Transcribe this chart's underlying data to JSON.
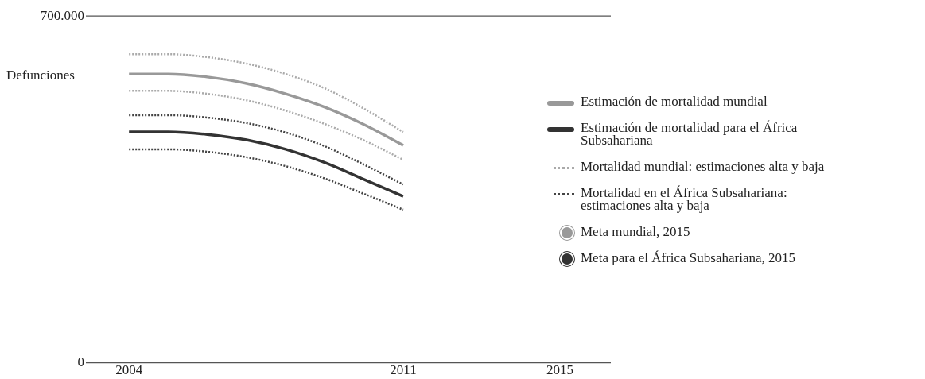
{
  "chart_data": {
    "type": "line",
    "ylabel": "Defunciones",
    "x": [
      2004,
      2005,
      2006,
      2007,
      2008,
      2009,
      2010,
      2011
    ],
    "xlim": [
      2002.9,
      2016.3
    ],
    "xticks": [
      2004,
      2011,
      2015
    ],
    "ylim": [
      0,
      700000
    ],
    "yticks": [
      0,
      {
        "value": 700000,
        "label": "700.000"
      }
    ],
    "legend": "right",
    "series": [
      {
        "name": "Estimación de mortalidad mundial",
        "color": "#999999",
        "line_style": "solid",
        "values": [
          583000,
          583000,
          577000,
          564000,
          543000,
          516000,
          481000,
          439000
        ]
      },
      {
        "name": "Estimación de mortalidad para el África Subsahariana",
        "color": "#333333",
        "line_style": "solid",
        "values": [
          466000,
          466000,
          461000,
          450000,
          431000,
          404000,
          370000,
          336000
        ]
      },
      {
        "name": "Mortalidad mundial: estimaciones alta y baja",
        "color": "#aaaaaa",
        "line_style": "dotted",
        "values": [
          623000,
          623000,
          617000,
          604000,
          583000,
          554000,
          513000,
          466000
        ]
      },
      {
        "color": "#aaaaaa",
        "line_style": "dotted",
        "values": [
          549000,
          549000,
          543000,
          530000,
          509000,
          482000,
          449000,
          410000
        ]
      },
      {
        "name": "Mortalidad en el África Subsahariana: estimaciones alta y baja",
        "color": "#444444",
        "line_style": "dotted",
        "values": [
          500000,
          500000,
          495000,
          484000,
          465000,
          437000,
          400000,
          360000
        ]
      },
      {
        "color": "#444444",
        "line_style": "dotted",
        "values": [
          431000,
          431000,
          426000,
          415000,
          397000,
          372000,
          341000,
          309000
        ]
      },
      {
        "name": "Meta mundial, 2015",
        "color": "#999999",
        "type": "scatter",
        "marker": "circle",
        "values": [
          null,
          null,
          null,
          null,
          null,
          null,
          null,
          null
        ]
      },
      {
        "name": "Meta para el África Subsahariana, 2015",
        "color": "#333333",
        "type": "scatter",
        "marker": "circle",
        "values": [
          null,
          null,
          null,
          null,
          null,
          null,
          null,
          null
        ]
      }
    ]
  }
}
